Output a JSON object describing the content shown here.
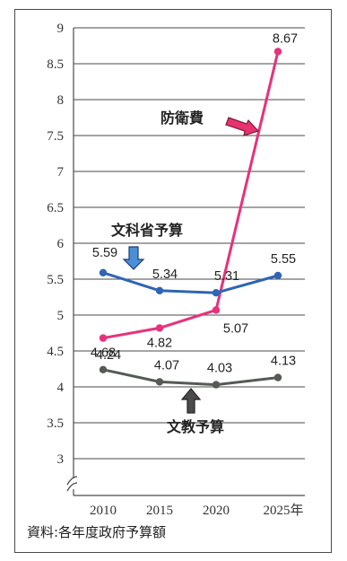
{
  "chart_data": {
    "type": "line",
    "x": [
      "2010",
      "2015",
      "2020",
      "2025"
    ],
    "x_tick_labels": [
      "2010",
      "2015",
      "2020",
      "2025年"
    ],
    "y_ticks": [
      "3",
      "3.5",
      "4",
      "4.5",
      "5",
      "5.5",
      "6",
      "6.5",
      "7",
      "7.5",
      "8",
      "8.5",
      "9"
    ],
    "ylim": [
      3,
      9
    ],
    "y_axis_break": true,
    "grid": "horizontal",
    "series": [
      {
        "name": "防衛費",
        "values": [
          4.68,
          4.82,
          5.07,
          8.67
        ],
        "labels": [
          "4.68",
          "4.82",
          "5.07",
          "8.67"
        ],
        "color": "#e8317a"
      },
      {
        "name": "文科省予算",
        "values": [
          5.59,
          5.34,
          5.31,
          5.55
        ],
        "labels": [
          "5.59",
          "5.34",
          "5.31",
          "5.55"
        ],
        "color": "#2f65b4"
      },
      {
        "name": "文教予算",
        "values": [
          4.24,
          4.07,
          4.03,
          4.13
        ],
        "labels": [
          "4.24",
          "4.07",
          "4.03",
          "4.13"
        ],
        "color": "#555a55"
      }
    ],
    "source": "資料:各年度政府予算額"
  },
  "colors": {
    "defense_arrow": "#e8316f",
    "mext_arrow": "#4a90d9",
    "education_arrow": "#4b4b4b",
    "gridline": "#4a4a4a"
  }
}
